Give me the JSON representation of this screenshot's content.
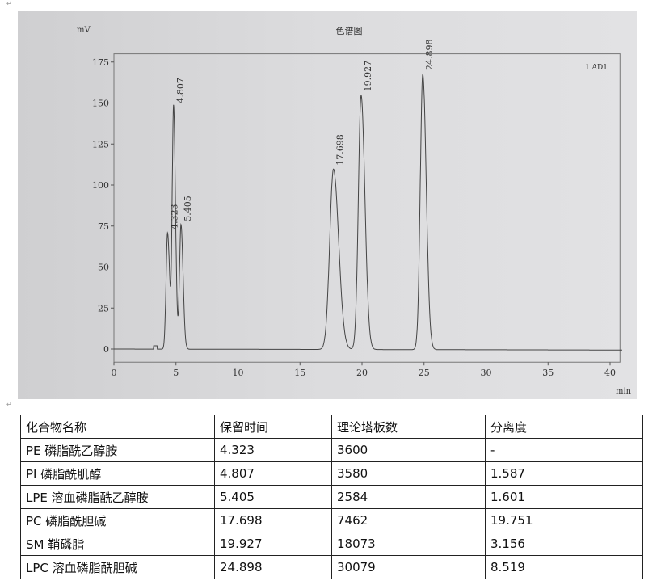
{
  "chart_data": {
    "type": "line",
    "title": "色谱图",
    "ylabel": "mV",
    "xlabel": "min",
    "channel": "1 AD1",
    "xlim": [
      0,
      41
    ],
    "ylim": [
      -5,
      180
    ],
    "xticks": [
      0,
      5,
      10,
      15,
      20,
      25,
      30,
      35,
      40
    ],
    "yticks": [
      0,
      25,
      50,
      75,
      100,
      125,
      150,
      175
    ],
    "peaks": [
      {
        "rt": 4.323,
        "height": 71,
        "width": 0.12
      },
      {
        "rt": 4.807,
        "height": 148,
        "width": 0.11
      },
      {
        "rt": 5.405,
        "height": 76,
        "width": 0.12
      },
      {
        "rt": 17.698,
        "height": 110,
        "width": 0.3
      },
      {
        "rt": 19.927,
        "height": 155,
        "width": 0.22
      },
      {
        "rt": 24.898,
        "height": 168,
        "width": 0.2
      }
    ]
  },
  "table": {
    "headers": [
      "化合物名称",
      "保留时间",
      "理论塔板数",
      "分离度"
    ],
    "rows": [
      [
        "PE 磷脂酰乙醇胺",
        "4.323",
        "3600",
        "-"
      ],
      [
        "PI 磷脂酰肌醇",
        "4.807",
        "3580",
        "1.587"
      ],
      [
        "LPE 溶血磷脂酰乙醇胺",
        "5.405",
        "2584",
        "1.601"
      ],
      [
        "PC 磷脂酰胆碱",
        "17.698",
        "7462",
        "19.751"
      ],
      [
        "SM 鞘磷脂",
        "19.927",
        "18073",
        "3.156"
      ],
      [
        "LPC 溶血磷脂酰胆碱",
        "24.898",
        "30079",
        "8.519"
      ]
    ]
  }
}
